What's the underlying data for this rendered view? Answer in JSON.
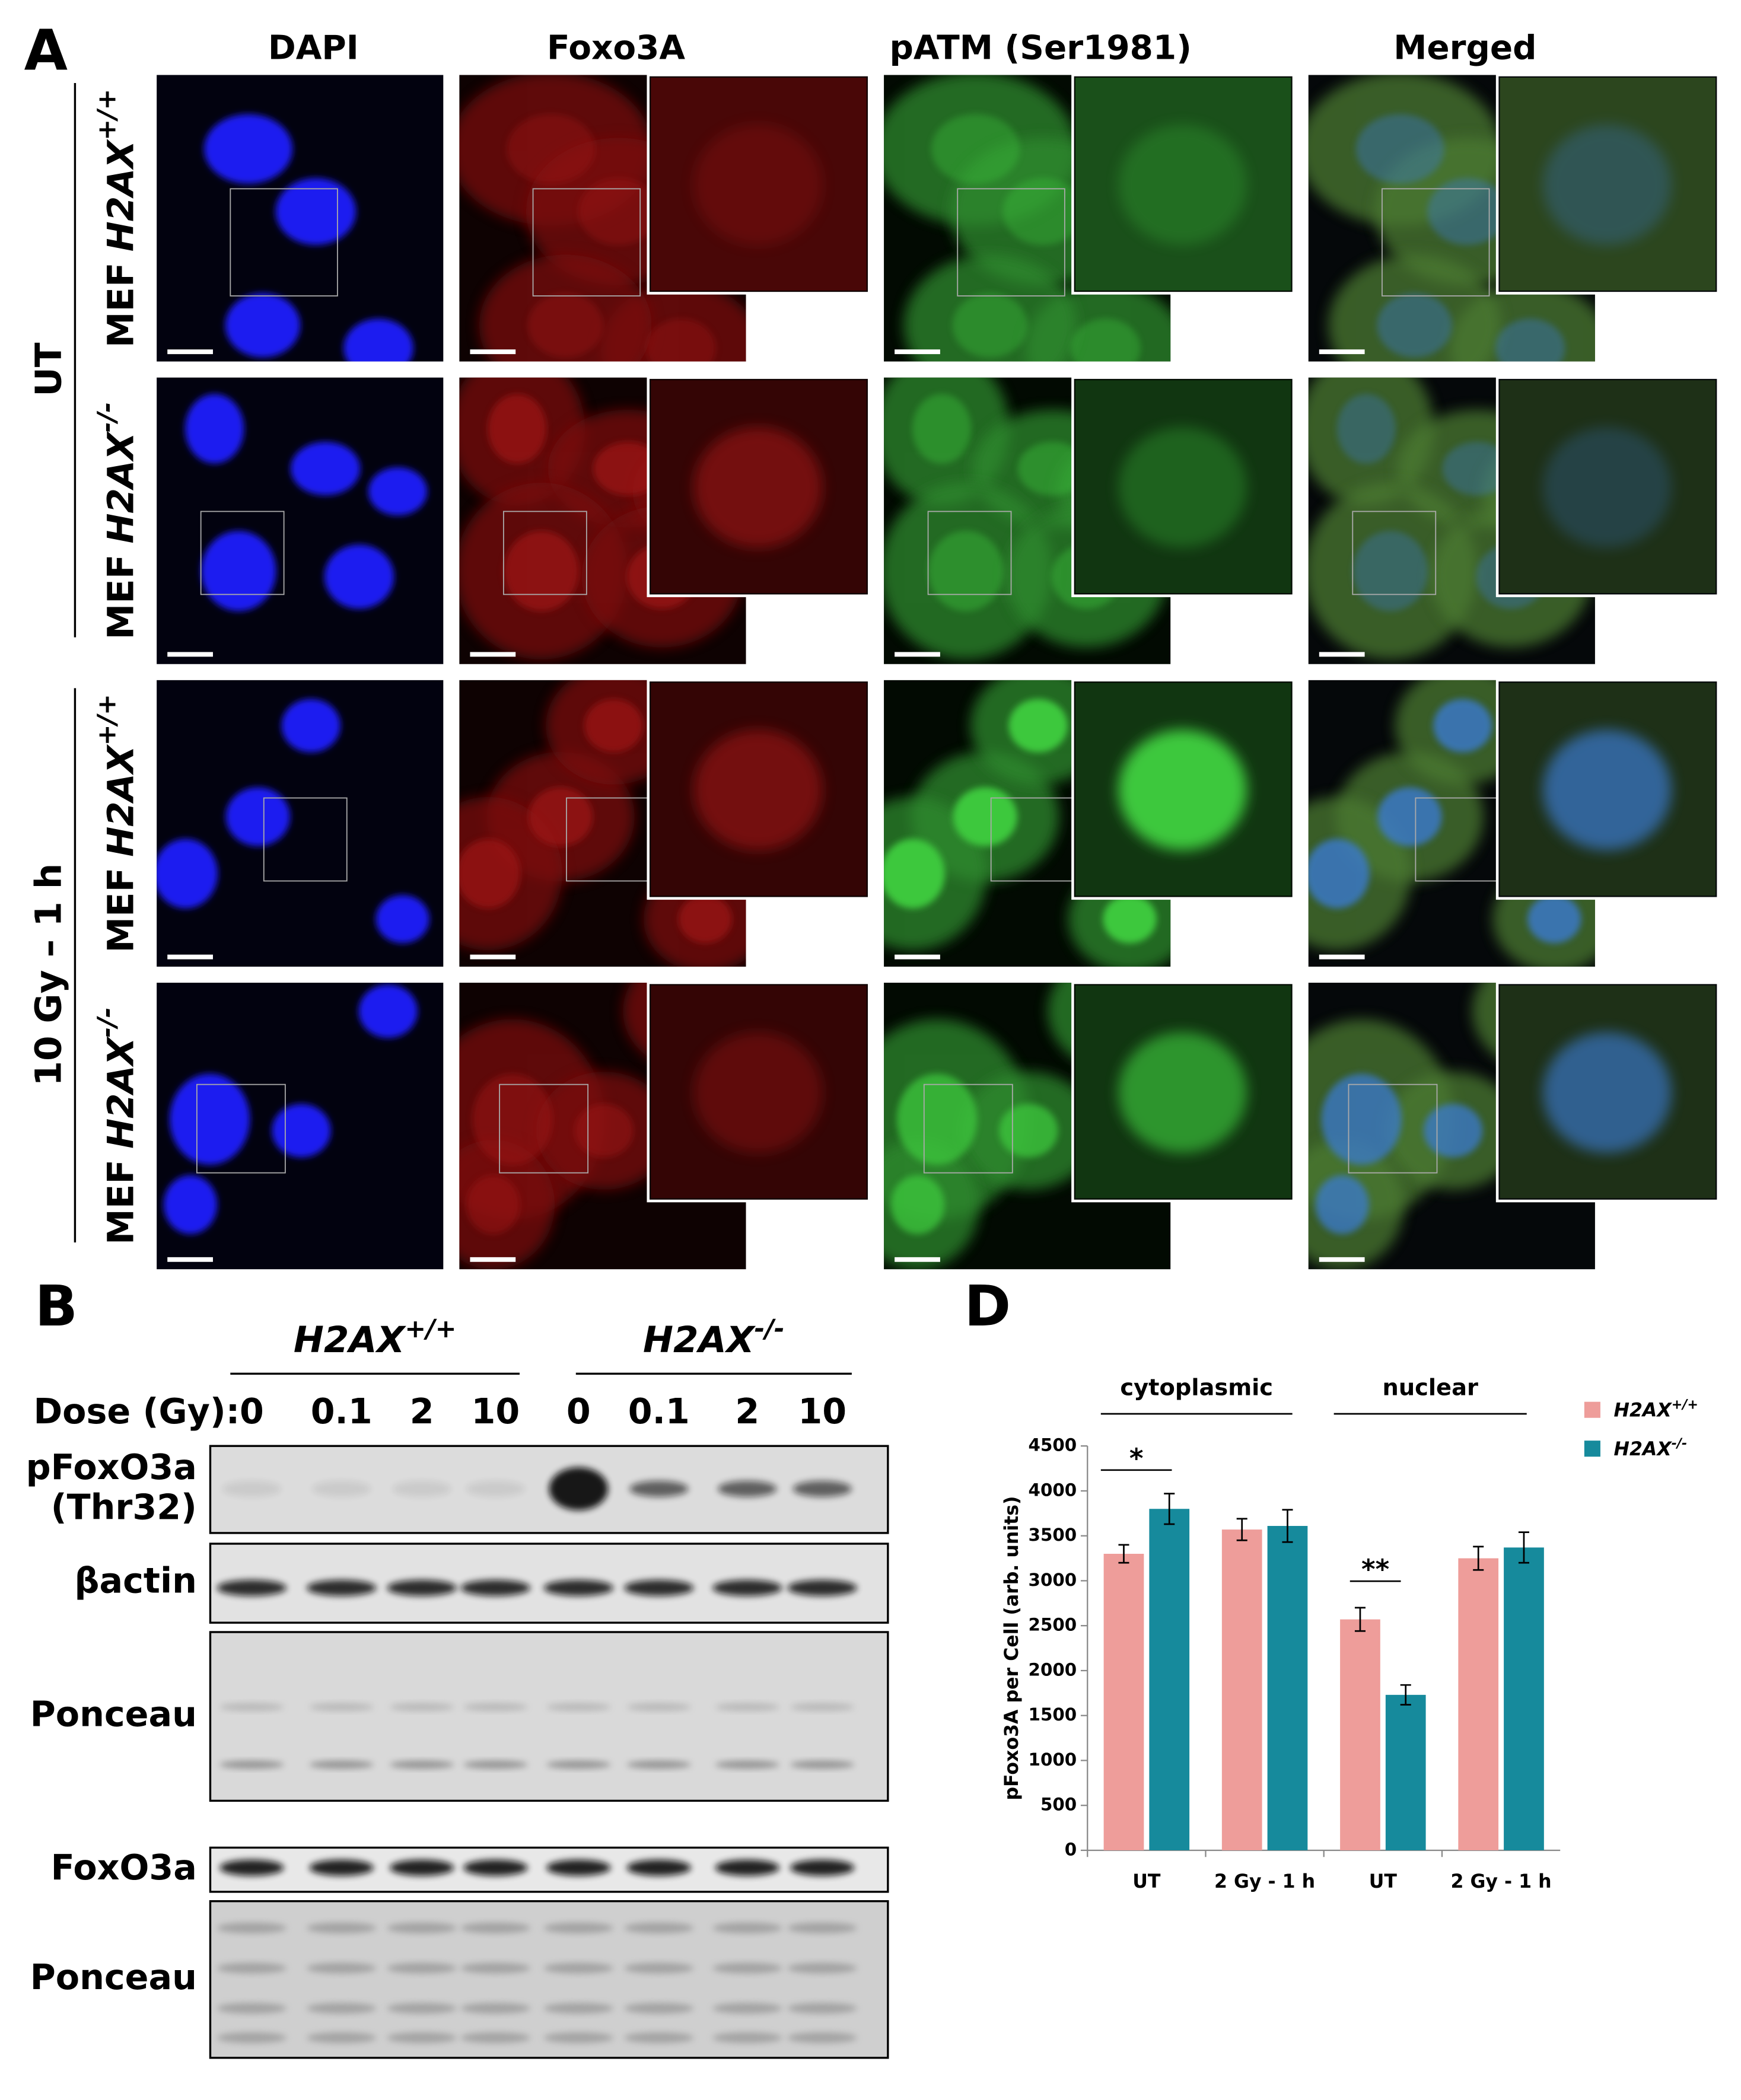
{
  "panel_a": {
    "letter": "A",
    "columns": [
      "DAPI",
      "Foxo3A",
      "pATM (Ser1981)",
      "Merged"
    ],
    "groups": [
      {
        "label": "UT",
        "rows": [
          {
            "prefix": "MEF",
            "gene": "H2AX",
            "genotype": "+/+"
          },
          {
            "prefix": "MEF",
            "gene": "H2AX",
            "genotype": "-/-"
          }
        ]
      },
      {
        "label": "10 Gy – 1 h",
        "rows": [
          {
            "prefix": "MEF",
            "gene": "H2AX",
            "genotype": "+/+"
          },
          {
            "prefix": "MEF",
            "gene": "H2AX",
            "genotype": "-/-"
          }
        ]
      }
    ]
  },
  "panel_b": {
    "letter": "B",
    "genotypes": [
      {
        "gene": "H2AX",
        "genotype": "+/+"
      },
      {
        "gene": "H2AX",
        "genotype": "-/-"
      }
    ],
    "dose_label": "Dose (Gy):",
    "doses": [
      0,
      0.1,
      2,
      10,
      0,
      0.1,
      2,
      10
    ],
    "blot_labels": [
      [
        "pFoxO3a",
        "(Thr32)"
      ],
      [
        "βactin"
      ],
      [
        "Ponceau"
      ],
      [
        "FoxO3a"
      ],
      [
        "Ponceau"
      ]
    ]
  },
  "panel_d": {
    "letter": "D"
  },
  "chart_data": {
    "type": "bar",
    "y_label": "pFoxo3A per Cell (arb. units)",
    "categories": [
      "UT",
      "2 Gy - 1 h",
      "UT",
      "2 Gy - 1 h"
    ],
    "groups": [
      "cytoplasmic",
      "nuclear"
    ],
    "series": [
      {
        "name": "H2AX",
        "superscript": "+/+",
        "color": "#ee9d9a",
        "values": [
          3300,
          3570,
          2570,
          3250
        ],
        "errors": [
          100,
          120,
          130,
          130
        ]
      },
      {
        "name": "H2AX",
        "superscript": "-/-",
        "color": "#168a9c",
        "values": [
          3800,
          3610,
          1730,
          3370
        ],
        "errors": [
          170,
          180,
          110,
          170
        ]
      }
    ],
    "ylim": [
      0,
      4500
    ],
    "yticks": [
      0,
      500,
      1000,
      1500,
      2000,
      2500,
      3000,
      3500,
      4000,
      4500
    ],
    "annotations": [
      "*",
      "**"
    ]
  }
}
